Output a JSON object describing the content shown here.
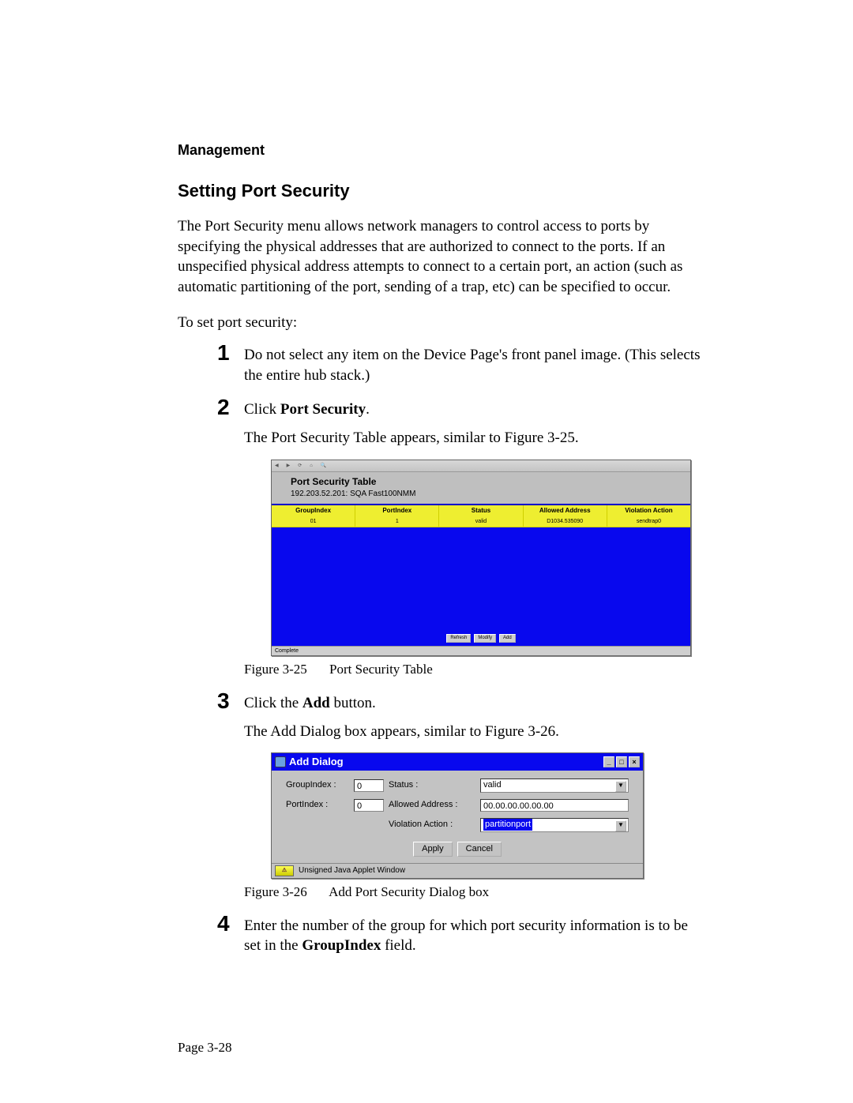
{
  "header": {
    "section": "Management"
  },
  "title": "Setting Port Security",
  "intro": "The Port Security menu allows network managers to control access to ports by specifying the physical addresses that are authorized to connect to the ports. If an unspecified physical address attempts to connect to a certain port, an action (such as automatic partitioning of the port, sending of a trap, etc) can be specified to occur.",
  "lead_in": "To set port security:",
  "steps": {
    "s1": {
      "num": "1",
      "text": "Do not select any item on the Device Page's front panel image. (This selects the entire hub stack.)"
    },
    "s2": {
      "num": "2",
      "click": "Click ",
      "bold": "Port Security",
      "period": ".",
      "after": "The Port Security Table appears, similar to Figure 3-25."
    },
    "s3": {
      "num": "3",
      "click": "Click the ",
      "bold": "Add",
      "after_inline": " button.",
      "after": "The Add Dialog box appears, similar to Figure 3-26."
    },
    "s4": {
      "num": "4",
      "pre": "Enter the number of the group for which port security information is to be set in the ",
      "bold": "GroupIndex",
      "post": " field."
    }
  },
  "fig25": {
    "label": "Figure 3-25",
    "caption": "Port Security Table"
  },
  "fig26": {
    "label": "Figure 3-26",
    "caption": "Add Port Security Dialog box"
  },
  "pst": {
    "title": "Port Security Table",
    "subtitle": "192.203.52.201: SQA Fast100NMM",
    "headers": {
      "h1": "GroupIndex",
      "h2": "PortIndex",
      "h3": "Status",
      "h4": "Allowed Address",
      "h5": "Violation Action"
    },
    "row": {
      "c1": "01",
      "c2": "1",
      "c3": "valid",
      "c4": "D1034.535090",
      "c5": "sendtrap0"
    },
    "btns": {
      "b1": "Refresh",
      "b2": "Modify",
      "b3": "Add"
    },
    "status": "Complete"
  },
  "dlg": {
    "title": "Add Dialog",
    "labels": {
      "gi": "GroupIndex :",
      "pi": "PortIndex :",
      "st": "Status :",
      "aa": "Allowed Address :",
      "va": "Violation Action :"
    },
    "values": {
      "gi": "0",
      "pi": "0",
      "st": "valid",
      "aa": "00.00.00.00.00.00",
      "va": "partitionport"
    },
    "btns": {
      "apply": "Apply",
      "cancel": "Cancel"
    },
    "status": "Unsigned Java Applet Window"
  },
  "footer": {
    "page": "Page 3-28"
  },
  "colors": {
    "yellow_header": "#eeee30",
    "blue_bg": "#0808ee",
    "gray_bg": "#c3c3c3"
  }
}
